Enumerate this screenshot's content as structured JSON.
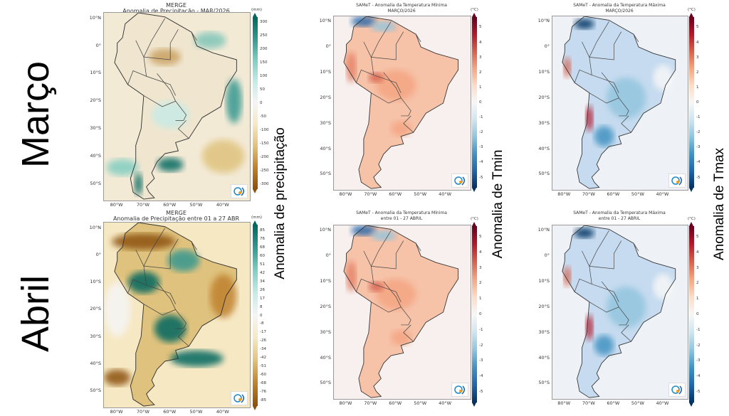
{
  "row_labels": [
    "Março",
    "Abril"
  ],
  "side_labels": [
    "Anomalia de precipitação",
    "Anomalia de Tmin",
    "Anomalia de Tmax"
  ],
  "lat_ticks": [
    "10°N",
    "0°",
    "10°S",
    "20°S",
    "30°S",
    "40°S",
    "50°S"
  ],
  "lon_ticks": [
    "80°W",
    "70°W",
    "60°W",
    "50°W",
    "40°W"
  ],
  "colors": {
    "precip_wet": "#01665e",
    "precip_dry": "#8c510a",
    "temp_warm": "#67001f",
    "temp_cold": "#053061"
  },
  "panels": [
    {
      "id": "precip-mar",
      "type": "precip",
      "title": [
        "MERGE",
        "Anomalia de Precipitação - MAR/2026"
      ],
      "unit": "(mm)",
      "ticks": [
        "300",
        "250",
        "200",
        "150",
        "100",
        "50",
        "0",
        "-50",
        "-100",
        "-150",
        "-200",
        "-250",
        "-300"
      ]
    },
    {
      "id": "tmin-mar",
      "type": "tmin",
      "title": [
        "SAMeT - Anomalia da Temperatura Mínima",
        "MARÇO/2026"
      ],
      "unit": "(°C)",
      "ticks": [
        "5",
        "4",
        "3",
        "2",
        "1",
        "0",
        "-1",
        "-2",
        "-3",
        "-4",
        "-5"
      ]
    },
    {
      "id": "tmax-mar",
      "type": "tmax",
      "title": [
        "SAMeT - Anomalia da Temperatura Máxima",
        "MARÇO/2026"
      ],
      "unit": "(°C)",
      "ticks": [
        "5",
        "4",
        "3",
        "2",
        "1",
        "0",
        "-1",
        "-2",
        "-3",
        "-4",
        "-5"
      ]
    },
    {
      "id": "precip-abr",
      "type": "precip2",
      "title": [
        "MERGE",
        "Anomalia de Precipitação entre 01 a 27 ABR"
      ],
      "unit": "(mm)",
      "ticks": [
        "85",
        "76",
        "68",
        "60",
        "51",
        "42",
        "34",
        "26",
        "17",
        "8",
        "0",
        "-8",
        "-17",
        "-26",
        "-34",
        "-42",
        "-51",
        "-60",
        "-68",
        "-76",
        "-85"
      ]
    },
    {
      "id": "tmin-abr",
      "type": "tmin",
      "title": [
        "SAMeT - Anomalia da Temperatura Mínima",
        "entre 01 - 27 ABRIL"
      ],
      "unit": "(°C)",
      "ticks": [
        "5",
        "4",
        "3",
        "2",
        "1",
        "0",
        "-1",
        "-2",
        "-3",
        "-4",
        "-5"
      ]
    },
    {
      "id": "tmax-abr",
      "type": "tmax",
      "title": [
        "SAMeT - Anomalia da Temperatura Máxima",
        "entre 01 - 27 ABRIL"
      ],
      "unit": "(°C)",
      "ticks": [
        "5",
        "4",
        "3",
        "2",
        "1",
        "0",
        "-1",
        "-2",
        "-3",
        "-4",
        "-5"
      ]
    }
  ]
}
